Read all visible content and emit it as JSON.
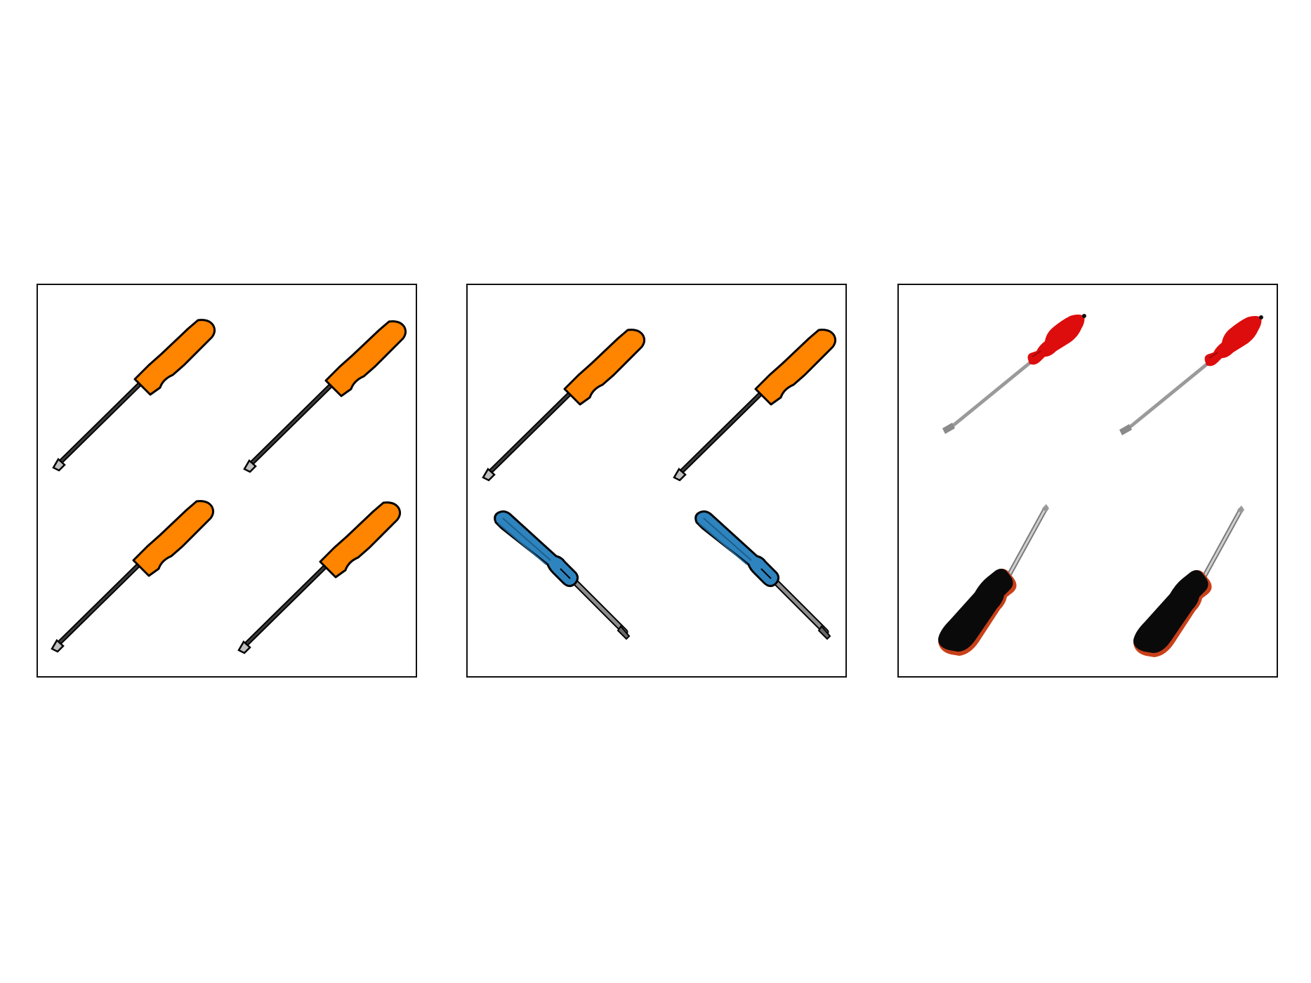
{
  "panels": [
    {
      "items": [
        {
          "kind": "flathead-icon",
          "handle_color": "#ff8400",
          "shaft_color": "#000000",
          "tip_color": "#c0c0c0"
        },
        {
          "kind": "flathead-icon",
          "handle_color": "#ff8400",
          "shaft_color": "#000000",
          "tip_color": "#c0c0c0"
        },
        {
          "kind": "flathead-icon",
          "handle_color": "#ff8400",
          "shaft_color": "#000000",
          "tip_color": "#c0c0c0"
        },
        {
          "kind": "flathead-icon",
          "handle_color": "#ff8400",
          "shaft_color": "#000000",
          "tip_color": "#c0c0c0"
        }
      ]
    },
    {
      "items": [
        {
          "kind": "flathead-icon",
          "handle_color": "#ff8400",
          "shaft_color": "#000000",
          "tip_color": "#c0c0c0"
        },
        {
          "kind": "flathead-icon",
          "handle_color": "#ff8400",
          "shaft_color": "#000000",
          "tip_color": "#c0c0c0"
        },
        {
          "kind": "phillips-icon",
          "handle_color": "#2e84be",
          "shaft_color": "#8c8c8c"
        },
        {
          "kind": "phillips-icon",
          "handle_color": "#2e84be",
          "shaft_color": "#8c8c8c"
        }
      ]
    },
    {
      "items": [
        {
          "kind": "red-flathead-icon",
          "handle_color": "#dd0d0d",
          "shaft_color": "#9a9a9a"
        },
        {
          "kind": "red-flathead-icon",
          "handle_color": "#dd0d0d",
          "shaft_color": "#9a9a9a"
        },
        {
          "kind": "black-screwdriver-icon",
          "handle_color": "#0a0a0a",
          "accent_color": "#c8401a",
          "shaft_color": "#b8b8b8"
        },
        {
          "kind": "black-screwdriver-icon",
          "handle_color": "#0a0a0a",
          "accent_color": "#c8401a",
          "shaft_color": "#b8b8b8"
        }
      ]
    }
  ]
}
